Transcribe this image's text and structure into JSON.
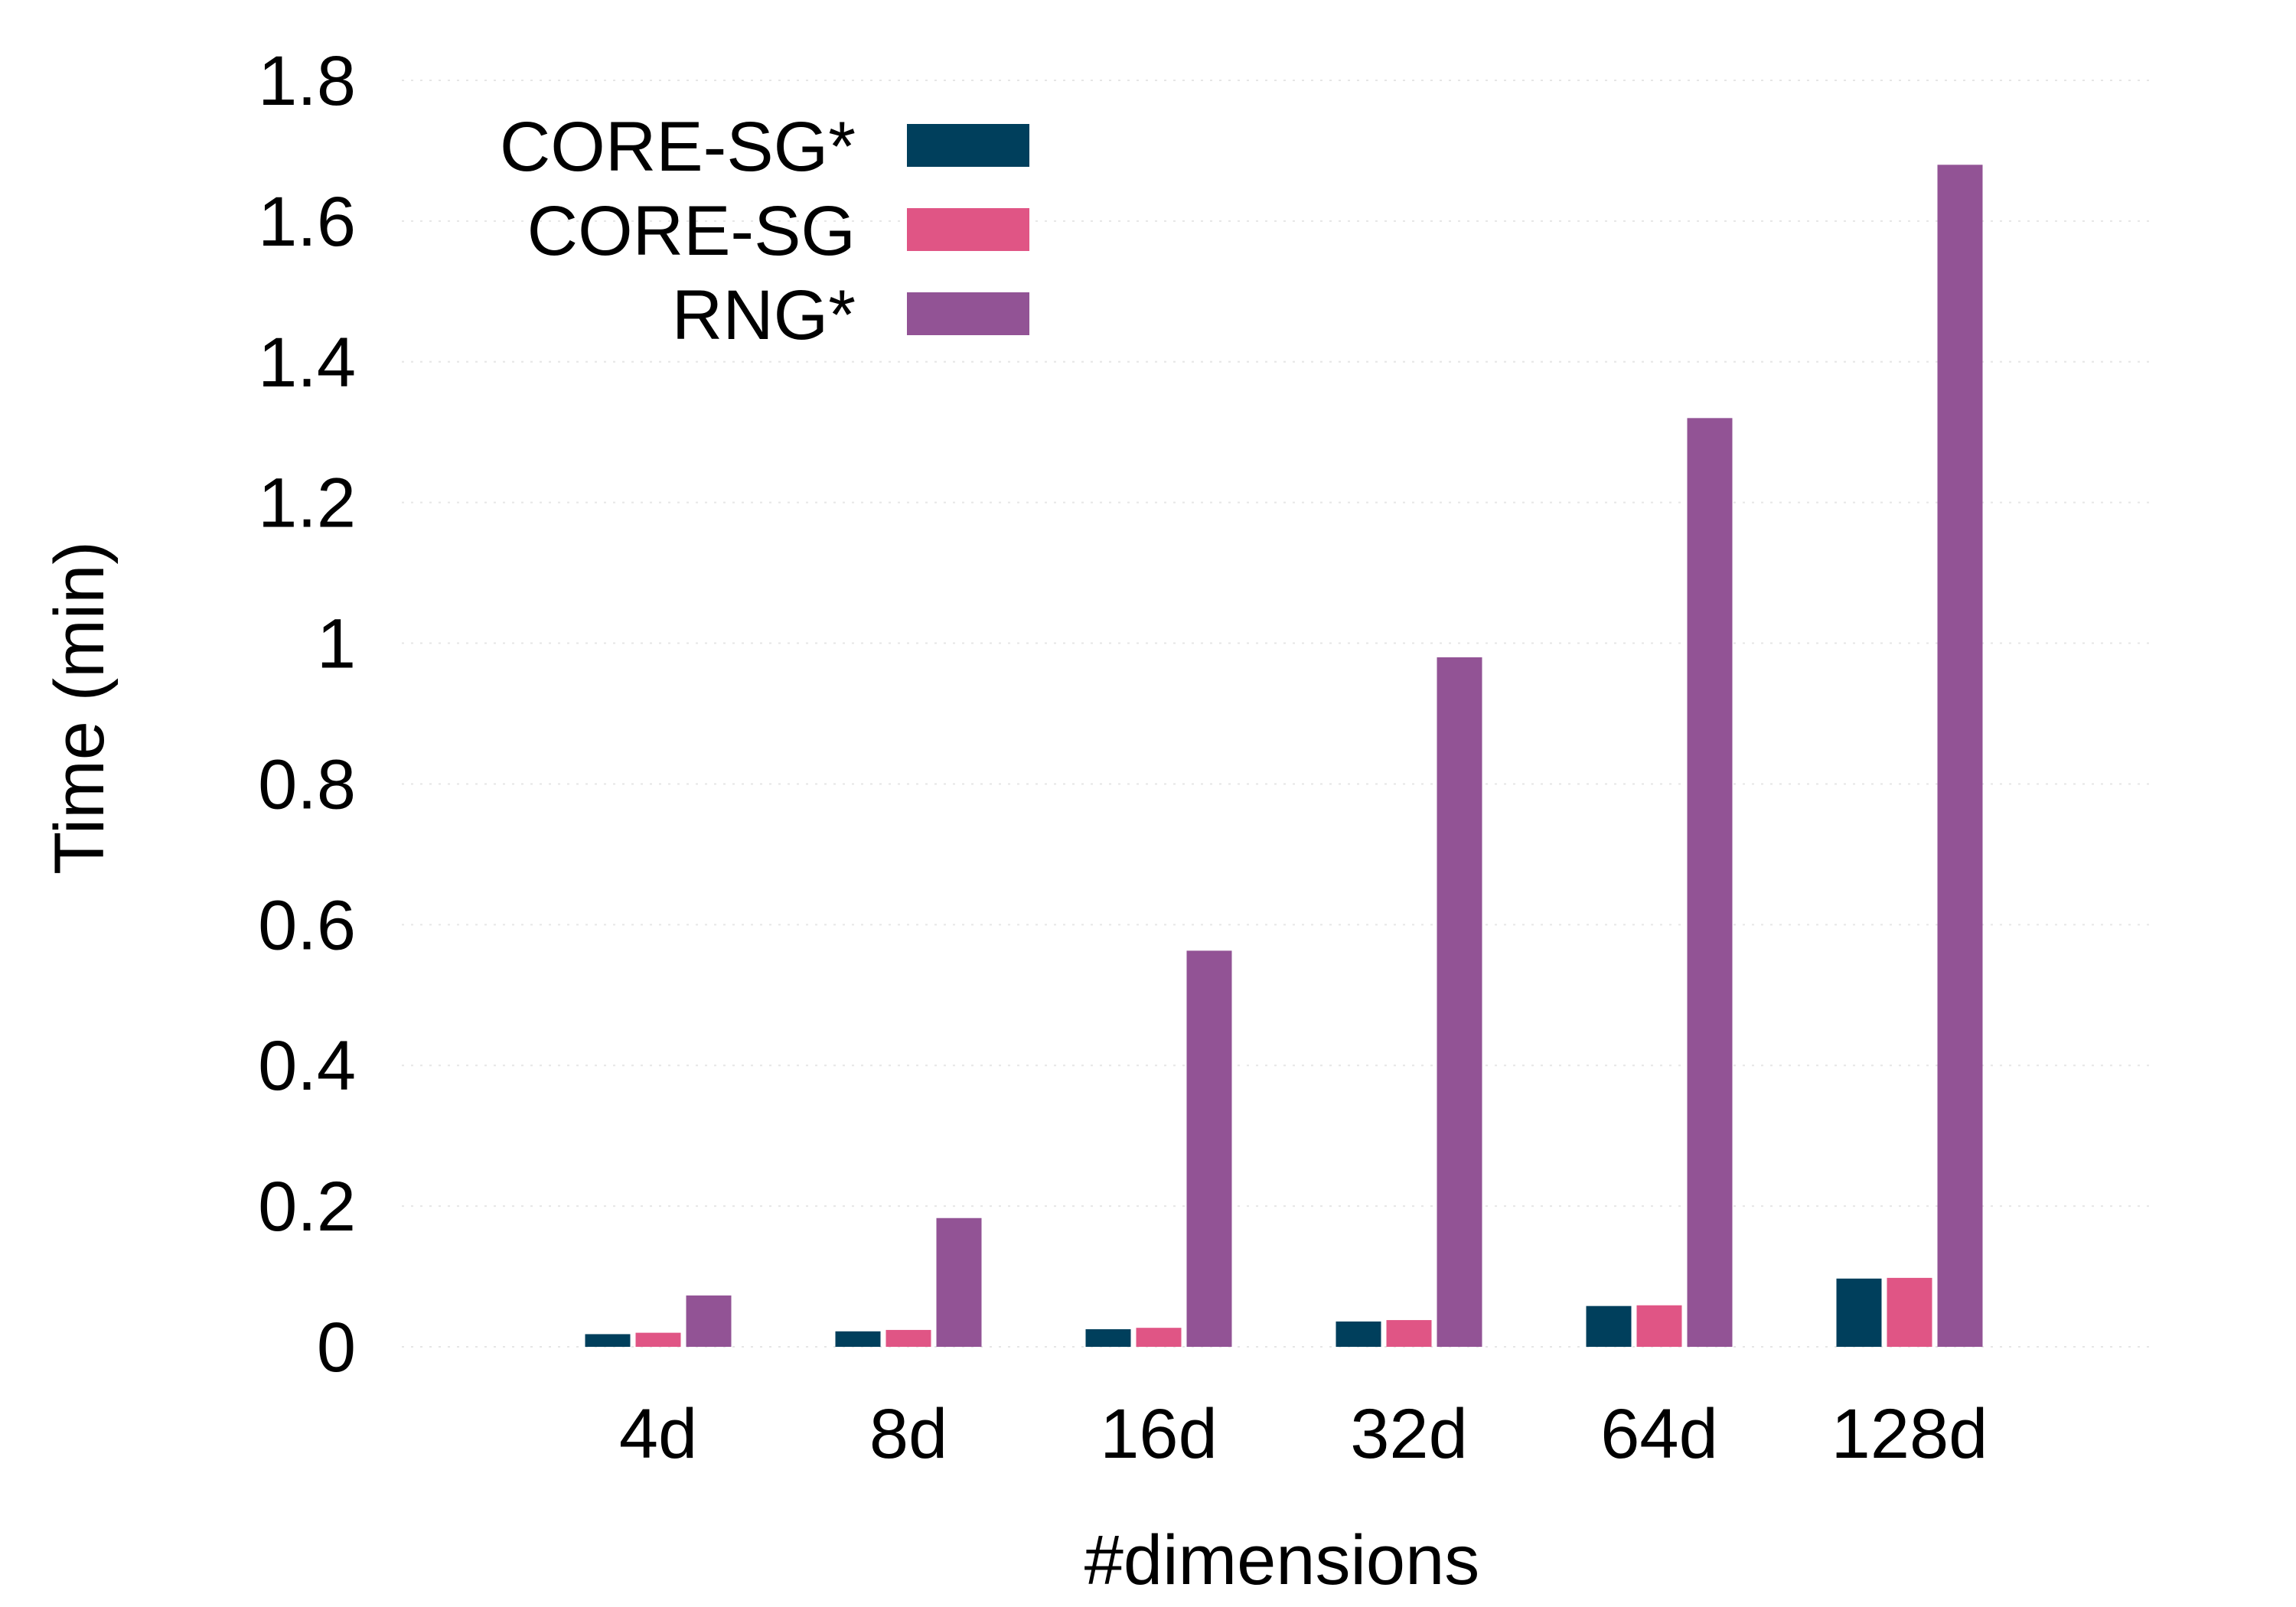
{
  "chart_data": {
    "type": "bar",
    "title": "",
    "xlabel": "#dimensions",
    "ylabel": "Time (min)",
    "categories": [
      "4d",
      "8d",
      "16d",
      "32d",
      "64d",
      "128d"
    ],
    "ylim": [
      0,
      1.8
    ],
    "yticks": [
      0,
      0.2,
      0.4,
      0.6,
      0.8,
      1,
      1.2,
      1.4,
      1.6,
      1.8
    ],
    "ytick_labels": [
      "0",
      "0.2",
      "0.4",
      "0.6",
      "0.8",
      "1",
      "1.2",
      "1.4",
      "1.6",
      "1.8"
    ],
    "grid": "horizontal dotted",
    "legend_position": "top-left",
    "series": [
      {
        "name": "CORE-SG*",
        "color": "#003f5c",
        "values": [
          0.018,
          0.022,
          0.025,
          0.036,
          0.058,
          0.097
        ]
      },
      {
        "name": "CORE-SG",
        "color": "#e05585",
        "values": [
          0.02,
          0.024,
          0.027,
          0.038,
          0.059,
          0.098
        ]
      },
      {
        "name": "RNG*",
        "color": "#925395",
        "values": [
          0.073,
          0.183,
          0.563,
          0.98,
          1.32,
          1.68
        ]
      }
    ]
  }
}
